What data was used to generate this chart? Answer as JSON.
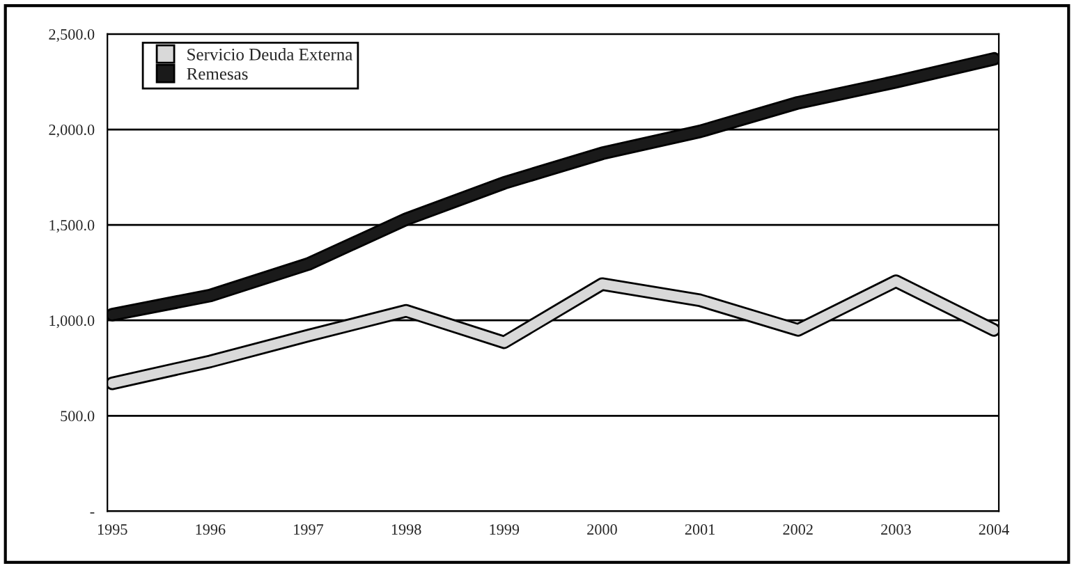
{
  "chart_data": {
    "type": "line",
    "categories": [
      "1995",
      "1996",
      "1997",
      "1998",
      "1999",
      "2000",
      "2001",
      "2002",
      "2003",
      "2004"
    ],
    "series": [
      {
        "name": "Servicio Deuda Externa",
        "color": "#d9d9d9",
        "values": [
          670,
          785,
          920,
          1050,
          885,
          1190,
          1105,
          950,
          1205,
          950
        ]
      },
      {
        "name": "Remesas",
        "color": "#1a1a1a",
        "values": [
          1030,
          1130,
          1295,
          1530,
          1720,
          1875,
          1990,
          2140,
          2250,
          2370
        ]
      }
    ],
    "ylim": [
      0,
      2500
    ],
    "yticks": [
      {
        "value": 0,
        "label": "-"
      },
      {
        "value": 500,
        "label": "500.0"
      },
      {
        "value": 1000,
        "label": "1,000.0"
      },
      {
        "value": 1500,
        "label": "1,500.0"
      },
      {
        "value": 2000,
        "label": "2,000.0"
      },
      {
        "value": 2500,
        "label": "2,500.0"
      }
    ],
    "grid": "y",
    "legend": "top left",
    "marker": "none",
    "line_style": "solid"
  }
}
